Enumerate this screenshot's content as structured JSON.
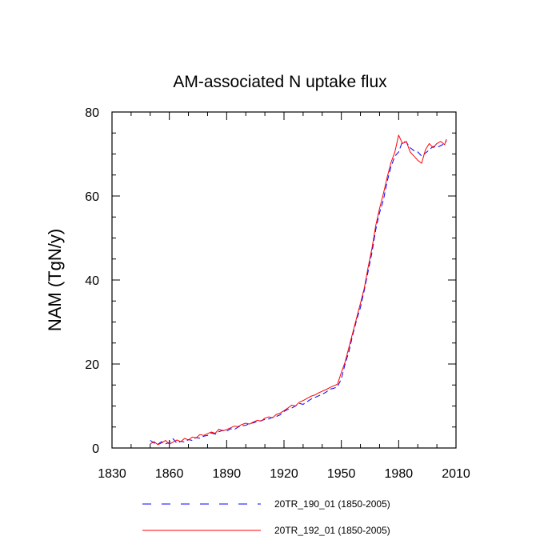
{
  "chart_data": {
    "type": "line",
    "title": "AM-associated N uptake flux",
    "xlabel": "",
    "ylabel": "NAM  (TgN/y)",
    "xlim": [
      1830,
      2010
    ],
    "ylim": [
      0,
      80
    ],
    "xticks": [
      1830,
      1860,
      1890,
      1920,
      1950,
      1980,
      2010
    ],
    "yticks": [
      0,
      20,
      40,
      60,
      80
    ],
    "grid": false,
    "legend_position": "bottom",
    "series": [
      {
        "name": "20TR_190_01 (1850-2005)",
        "color": "#0000ff",
        "style": "dashed",
        "x": [
          1850,
          1852,
          1854,
          1856,
          1858,
          1860,
          1862,
          1864,
          1866,
          1868,
          1870,
          1872,
          1874,
          1876,
          1878,
          1880,
          1882,
          1884,
          1886,
          1888,
          1890,
          1892,
          1894,
          1896,
          1898,
          1900,
          1902,
          1904,
          1906,
          1908,
          1910,
          1912,
          1914,
          1916,
          1918,
          1920,
          1922,
          1924,
          1926,
          1928,
          1930,
          1932,
          1934,
          1936,
          1938,
          1940,
          1942,
          1944,
          1946,
          1948,
          1950,
          1952,
          1954,
          1956,
          1958,
          1960,
          1962,
          1964,
          1966,
          1968,
          1970,
          1972,
          1974,
          1976,
          1978,
          1980,
          1982,
          1984,
          1986,
          1988,
          1990,
          1992,
          1994,
          1996,
          1998,
          2000,
          2002,
          2004,
          2005
        ],
        "y": [
          1.8,
          1.2,
          0.9,
          1.5,
          1.0,
          1.3,
          2.2,
          1.1,
          1.6,
          1.4,
          2.0,
          1.8,
          2.5,
          2.3,
          2.8,
          3.0,
          3.6,
          3.3,
          3.9,
          4.2,
          4.0,
          4.6,
          4.4,
          5.0,
          5.3,
          5.4,
          5.8,
          6.0,
          6.3,
          6.5,
          6.8,
          6.9,
          7.3,
          7.5,
          7.9,
          8.7,
          9.2,
          9.5,
          10.0,
          10.6,
          10.4,
          11.0,
          11.6,
          12.0,
          12.4,
          12.8,
          13.3,
          14.0,
          14.2,
          14.6,
          16.5,
          20.0,
          23.0,
          27.0,
          30.5,
          33.5,
          37.5,
          42.0,
          46.5,
          52.0,
          56.0,
          59.0,
          63.5,
          67.0,
          69.5,
          70.5,
          73.0,
          72.8,
          71.5,
          70.8,
          70.5,
          69.5,
          70.2,
          71.0,
          71.8,
          71.5,
          72.0,
          72.5,
          73.2
        ]
      },
      {
        "name": "20TR_192_01 (1850-2005)",
        "color": "#ff0000",
        "style": "solid",
        "x": [
          1850,
          1852,
          1854,
          1856,
          1858,
          1860,
          1862,
          1864,
          1866,
          1868,
          1870,
          1872,
          1874,
          1876,
          1878,
          1880,
          1882,
          1884,
          1886,
          1888,
          1890,
          1892,
          1894,
          1896,
          1898,
          1900,
          1902,
          1904,
          1906,
          1908,
          1910,
          1912,
          1914,
          1916,
          1918,
          1920,
          1922,
          1924,
          1926,
          1928,
          1930,
          1932,
          1934,
          1936,
          1938,
          1940,
          1942,
          1944,
          1946,
          1948,
          1950,
          1952,
          1954,
          1956,
          1958,
          1960,
          1962,
          1964,
          1966,
          1968,
          1970,
          1972,
          1974,
          1976,
          1978,
          1980,
          1982,
          1984,
          1986,
          1988,
          1990,
          1992,
          1994,
          1996,
          1998,
          2000,
          2002,
          2004,
          2005
        ],
        "y": [
          1.0,
          1.5,
          0.8,
          1.2,
          1.8,
          0.9,
          1.4,
          1.9,
          1.5,
          2.3,
          1.9,
          2.6,
          2.4,
          3.2,
          3.0,
          3.4,
          3.8,
          3.5,
          4.5,
          4.1,
          4.4,
          4.8,
          5.2,
          5.1,
          5.6,
          5.9,
          5.7,
          6.2,
          6.6,
          6.4,
          7.1,
          7.4,
          7.2,
          8.0,
          8.3,
          8.9,
          9.5,
          10.2,
          10.0,
          10.9,
          11.3,
          11.8,
          12.3,
          12.6,
          13.1,
          13.5,
          13.9,
          14.4,
          14.8,
          15.2,
          18.0,
          20.5,
          24.0,
          27.5,
          31.0,
          34.5,
          38.0,
          43.0,
          47.5,
          53.0,
          57.0,
          60.5,
          64.5,
          68.0,
          70.5,
          74.5,
          72.5,
          73.0,
          70.5,
          69.5,
          68.5,
          67.8,
          71.0,
          72.5,
          71.5,
          72.5,
          73.0,
          72.2,
          73.5
        ]
      }
    ]
  }
}
